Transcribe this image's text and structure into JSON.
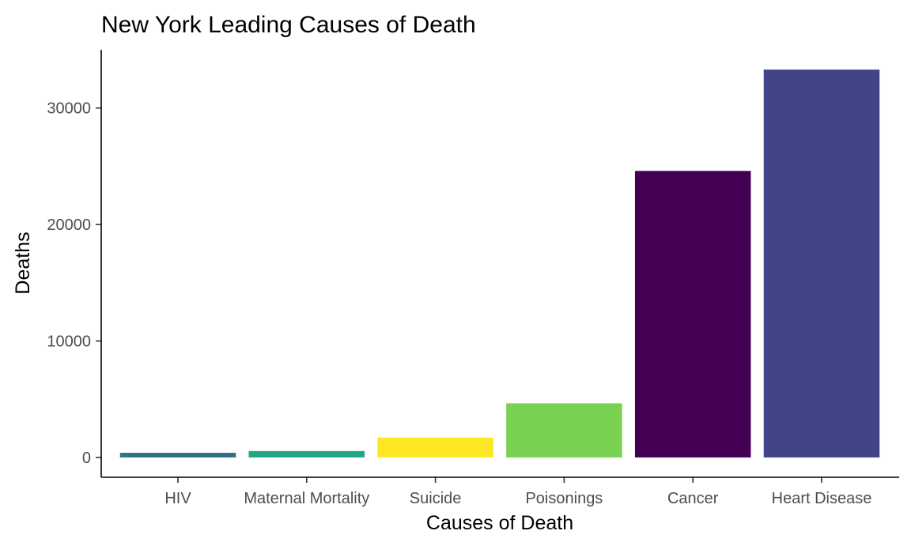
{
  "chart_data": {
    "type": "bar",
    "title": "New York Leading Causes of Death",
    "xlabel": "Causes of Death",
    "ylabel": "Deaths",
    "categories": [
      "HIV",
      "Maternal Mortality",
      "Suicide",
      "Poisonings",
      "Cancer",
      "Heart Disease"
    ],
    "values": [
      400,
      550,
      1700,
      4650,
      24600,
      33300
    ],
    "colors": [
      "#2E7283",
      "#22A684",
      "#FDE725",
      "#7AD151",
      "#440154",
      "#414487"
    ],
    "yticks": [
      0,
      10000,
      20000,
      30000
    ],
    "ylim": [
      -1700,
      35000
    ],
    "grid": false,
    "legend": "none"
  }
}
